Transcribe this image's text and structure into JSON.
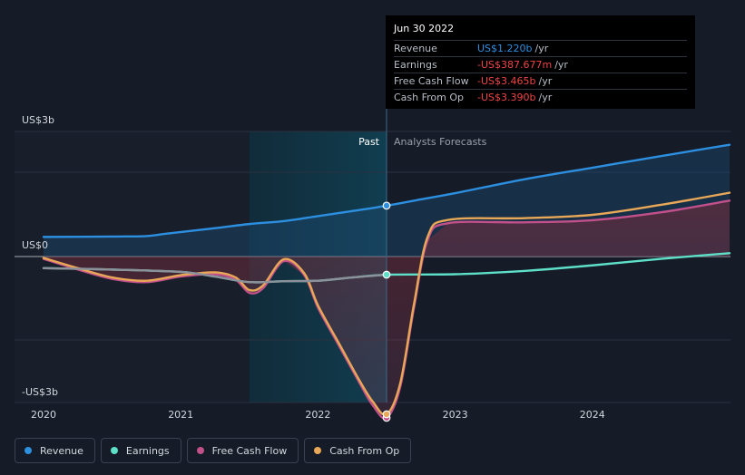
{
  "tooltip": {
    "date": "Jun 30 2022",
    "rows": [
      {
        "label": "Revenue",
        "value": "US$1.220b",
        "unit": "/yr",
        "color": "#2d8fe0"
      },
      {
        "label": "Earnings",
        "value": "-US$387.677m",
        "unit": "/yr",
        "color": "#ef4444"
      },
      {
        "label": "Free Cash Flow",
        "value": "-US$3.465b",
        "unit": "/yr",
        "color": "#ef4444"
      },
      {
        "label": "Cash From Op",
        "value": "-US$3.390b",
        "unit": "/yr",
        "color": "#ef4444"
      }
    ]
  },
  "labels": {
    "past": "Past",
    "forecast": "Analysts Forecasts"
  },
  "legend": [
    {
      "label": "Revenue",
      "color": "#2d8fe0"
    },
    {
      "label": "Earnings",
      "color": "#5ee0c8"
    },
    {
      "label": "Free Cash Flow",
      "color": "#c2508a"
    },
    {
      "label": "Cash From Op",
      "color": "#e8a857"
    }
  ],
  "chart_data": {
    "type": "line",
    "y_ticks": [
      {
        "label": "US$3b",
        "value": 3
      },
      {
        "label": "US$0",
        "value": 0
      },
      {
        "label": "-US$3b",
        "value": -3
      }
    ],
    "x_ticks": [
      {
        "label": "2020",
        "value": 2020
      },
      {
        "label": "2021",
        "value": 2021
      },
      {
        "label": "2022",
        "value": 2022
      },
      {
        "label": "2023",
        "value": 2023
      },
      {
        "label": "2024",
        "value": 2024
      }
    ],
    "xlim": [
      2019.8,
      2025.0
    ],
    "ylim": [
      -3.5,
      3.0
    ],
    "highlight_start": 2021.5,
    "divider_x": 2022.5,
    "series": [
      {
        "name": "Revenue",
        "color": "#2d8fe0",
        "points": [
          [
            2020.0,
            0.47
          ],
          [
            2020.5,
            0.48
          ],
          [
            2020.75,
            0.49
          ],
          [
            2020.9,
            0.55
          ],
          [
            2021.25,
            0.68
          ],
          [
            2021.5,
            0.78
          ],
          [
            2021.75,
            0.85
          ],
          [
            2022.0,
            0.97
          ],
          [
            2022.25,
            1.09
          ],
          [
            2022.5,
            1.22
          ],
          [
            2022.75,
            1.37
          ],
          [
            2023.0,
            1.52
          ],
          [
            2023.5,
            1.85
          ],
          [
            2024.0,
            2.13
          ],
          [
            2024.5,
            2.41
          ],
          [
            2025.0,
            2.68
          ]
        ]
      },
      {
        "name": "Earnings",
        "color": "#5ee0c8",
        "points": [
          [
            2020.0,
            -0.25
          ],
          [
            2020.5,
            -0.28
          ],
          [
            2021.0,
            -0.33
          ],
          [
            2021.25,
            -0.43
          ],
          [
            2021.5,
            -0.55
          ],
          [
            2021.75,
            -0.53
          ],
          [
            2022.0,
            -0.52
          ],
          [
            2022.25,
            -0.45
          ],
          [
            2022.5,
            -0.39
          ],
          [
            2023.0,
            -0.38
          ],
          [
            2023.5,
            -0.31
          ],
          [
            2024.0,
            -0.19
          ],
          [
            2024.5,
            -0.05
          ],
          [
            2025.0,
            0.08
          ]
        ]
      },
      {
        "name": "Free Cash Flow",
        "color": "#c2508a",
        "points": [
          [
            2020.0,
            -0.05
          ],
          [
            2020.25,
            -0.28
          ],
          [
            2020.5,
            -0.48
          ],
          [
            2020.75,
            -0.55
          ],
          [
            2021.0,
            -0.43
          ],
          [
            2021.25,
            -0.38
          ],
          [
            2021.4,
            -0.5
          ],
          [
            2021.5,
            -0.78
          ],
          [
            2021.6,
            -0.68
          ],
          [
            2021.75,
            -0.1
          ],
          [
            2021.9,
            -0.4
          ],
          [
            2022.0,
            -1.1
          ],
          [
            2022.15,
            -1.9
          ],
          [
            2022.3,
            -2.7
          ],
          [
            2022.4,
            -3.2
          ],
          [
            2022.5,
            -3.465
          ],
          [
            2022.6,
            -2.8
          ],
          [
            2022.7,
            -1.1
          ],
          [
            2022.8,
            0.4
          ],
          [
            2022.95,
            0.8
          ],
          [
            2023.5,
            0.82
          ],
          [
            2024.0,
            0.87
          ],
          [
            2024.5,
            1.06
          ],
          [
            2025.0,
            1.34
          ]
        ]
      },
      {
        "name": "Cash From Op",
        "color": "#e8a857",
        "points": [
          [
            2020.0,
            -0.03
          ],
          [
            2020.25,
            -0.25
          ],
          [
            2020.5,
            -0.45
          ],
          [
            2020.75,
            -0.52
          ],
          [
            2021.0,
            -0.4
          ],
          [
            2021.25,
            -0.34
          ],
          [
            2021.4,
            -0.45
          ],
          [
            2021.5,
            -0.72
          ],
          [
            2021.6,
            -0.62
          ],
          [
            2021.75,
            -0.06
          ],
          [
            2021.9,
            -0.36
          ],
          [
            2022.0,
            -1.05
          ],
          [
            2022.15,
            -1.85
          ],
          [
            2022.3,
            -2.65
          ],
          [
            2022.4,
            -3.12
          ],
          [
            2022.5,
            -3.39
          ],
          [
            2022.6,
            -2.72
          ],
          [
            2022.7,
            -1.02
          ],
          [
            2022.8,
            0.48
          ],
          [
            2022.95,
            0.88
          ],
          [
            2023.5,
            0.92
          ],
          [
            2024.0,
            1.0
          ],
          [
            2024.5,
            1.24
          ],
          [
            2025.0,
            1.53
          ]
        ]
      }
    ]
  }
}
